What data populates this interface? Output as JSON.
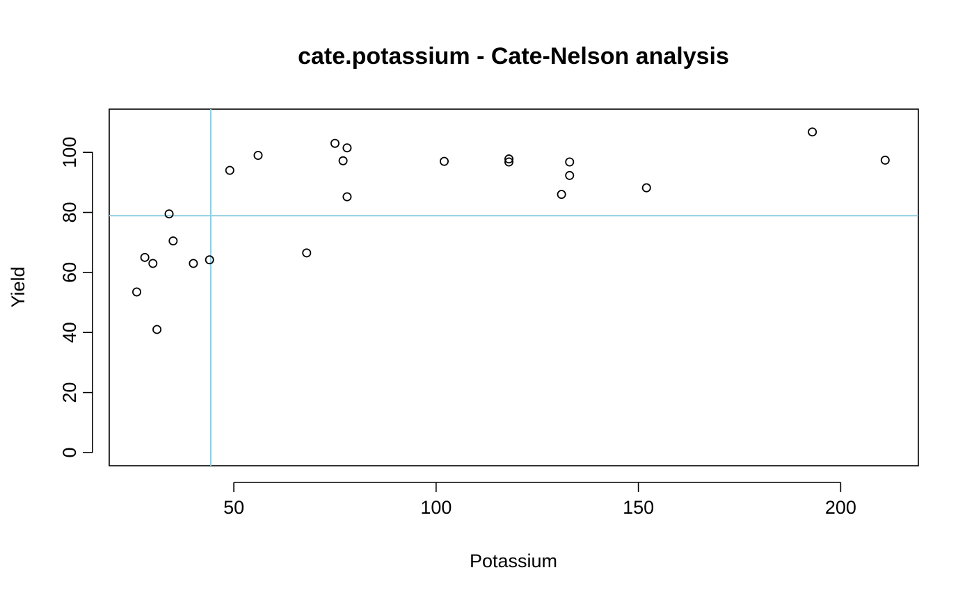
{
  "chart_data": {
    "type": "scatter",
    "title": "cate.potassium - Cate-Nelson analysis",
    "xlabel": "Potassium",
    "ylabel": "Yield",
    "xlim": [
      19.2,
      219.2
    ],
    "ylim": [
      -4.4,
      114.4
    ],
    "xticks": [
      50,
      100,
      150,
      200
    ],
    "yticks": [
      0,
      20,
      40,
      60,
      80,
      100
    ],
    "grid": false,
    "legend": "none",
    "point_color": "#000000",
    "points": [
      {
        "x": 26,
        "y": 53.5
      },
      {
        "x": 28,
        "y": 65
      },
      {
        "x": 30,
        "y": 63
      },
      {
        "x": 31,
        "y": 41
      },
      {
        "x": 34,
        "y": 79.5
      },
      {
        "x": 35,
        "y": 70.5
      },
      {
        "x": 40,
        "y": 63
      },
      {
        "x": 44,
        "y": 64.2
      },
      {
        "x": 49,
        "y": 94
      },
      {
        "x": 56,
        "y": 99
      },
      {
        "x": 68,
        "y": 66.5
      },
      {
        "x": 75,
        "y": 103
      },
      {
        "x": 77,
        "y": 97.2
      },
      {
        "x": 78,
        "y": 101.5
      },
      {
        "x": 78,
        "y": 85.2
      },
      {
        "x": 102,
        "y": 97
      },
      {
        "x": 118,
        "y": 97.8
      },
      {
        "x": 118,
        "y": 96.8
      },
      {
        "x": 131,
        "y": 86
      },
      {
        "x": 133,
        "y": 96.8
      },
      {
        "x": 133,
        "y": 92.3
      },
      {
        "x": 152,
        "y": 88.2
      },
      {
        "x": 193,
        "y": 106.8
      },
      {
        "x": 211,
        "y": 97.4
      }
    ],
    "critical_lines": {
      "x": 44.3,
      "y": 78.9,
      "color": "#8fcde0"
    }
  }
}
